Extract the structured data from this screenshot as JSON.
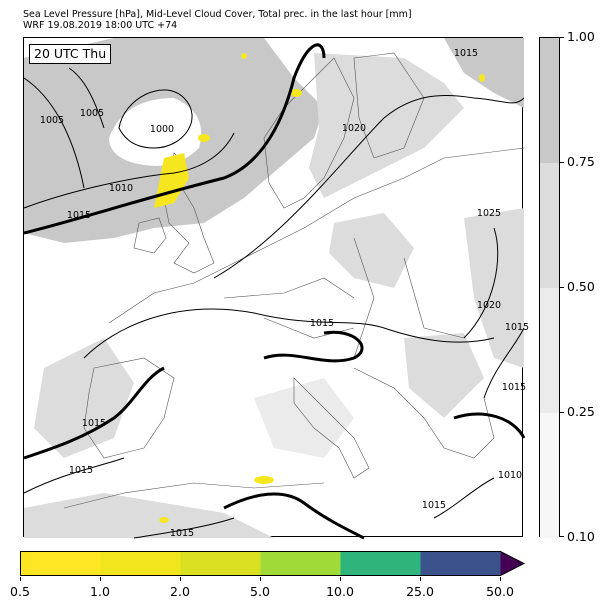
{
  "header": {
    "title_line1": "Sea Level Pressure [hPa], Mid-Level Cloud Cover, Total prec. in the last hour [mm]",
    "title_line2": "WRF 19.08.2019 18:00 UTC +74"
  },
  "map": {
    "valid_time_label": "20 UTC Thu",
    "isobar_labels": [
      "1015",
      "1005",
      "1005",
      "1000",
      "1020",
      "1010",
      "1015",
      "1025",
      "1020",
      "1015",
      "1015",
      "1015",
      "1015",
      "1015",
      "1010",
      "1015",
      "1015"
    ],
    "colors": {
      "isobar": "#000000",
      "coastline": "#555555",
      "cloud_high": "#c8c8c8",
      "cloud_mid": "#dcdcdc",
      "precip": "#f6e61f"
    }
  },
  "cloud_colorbar": {
    "ticks": [
      "1.00",
      "0.75",
      "0.50",
      "0.25",
      "0.10"
    ],
    "colors": [
      "#c8c8c8",
      "#dcdcdc",
      "#ebebeb",
      "#f7f7f7"
    ]
  },
  "precip_colorbar": {
    "ticks": [
      "0.5",
      "1.0",
      "2.0",
      "5.0",
      "10.0",
      "25.0",
      "50.0"
    ],
    "colors": [
      "#fde725",
      "#f1e51d",
      "#d9e021",
      "#a0da39",
      "#2fb47c",
      "#3b528b",
      "#440154"
    ],
    "extend": "max"
  }
}
